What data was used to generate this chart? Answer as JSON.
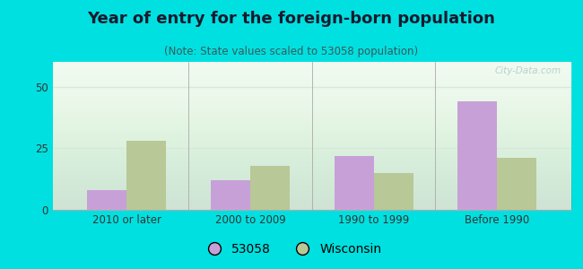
{
  "title": "Year of entry for the foreign-born population",
  "subtitle": "(Note: State values scaled to 53058 population)",
  "categories": [
    "2010 or later",
    "2000 to 2009",
    "1990 to 1999",
    "Before 1990"
  ],
  "values_53058": [
    8,
    12,
    22,
    44
  ],
  "values_wisconsin": [
    28,
    18,
    15,
    21
  ],
  "color_53058": "#c8a0d8",
  "color_wisconsin": "#b8c896",
  "background_outer": "#00e0e0",
  "background_chart": "#dff0df",
  "ylim": [
    0,
    60
  ],
  "yticks": [
    0,
    25,
    50
  ],
  "grid_color": "#d8e8d8",
  "title_fontsize": 13,
  "subtitle_fontsize": 8.5,
  "tick_fontsize": 8.5,
  "legend_fontsize": 10,
  "watermark_text": "City-Data.com",
  "bar_width": 0.32
}
